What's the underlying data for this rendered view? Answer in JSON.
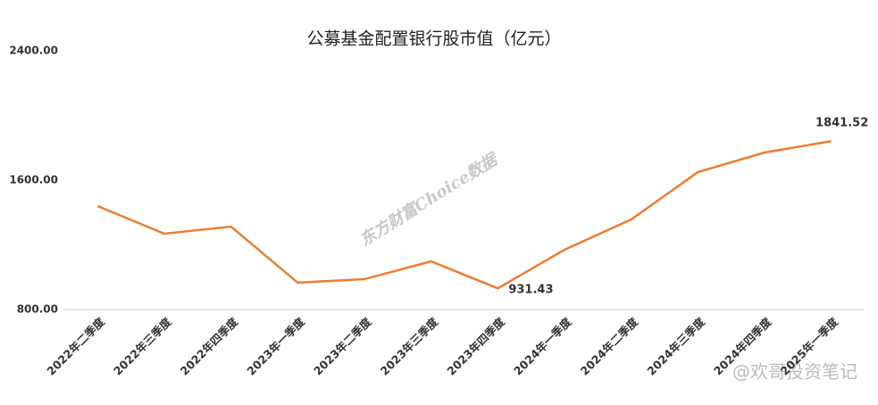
{
  "chart_data": {
    "type": "line",
    "title": "公募基金配置银行股市值（亿元）",
    "categories": [
      "2022年二季度",
      "2022年三季度",
      "2022年四季度",
      "2023年一季度",
      "2023年二季度",
      "2023年三季度",
      "2023年四季度",
      "2024年一季度",
      "2024年二季度",
      "2024年三季度",
      "2024年四季度",
      "2025年一季度"
    ],
    "series": [
      {
        "name": "公募基金配置银行股市值",
        "color": "#ed7d31",
        "values": [
          1440,
          1269,
          1313,
          966,
          988,
          1098,
          931.43,
          1170,
          1357,
          1650,
          1771,
          1841.52
        ],
        "value_labels": [
          null,
          null,
          null,
          null,
          null,
          null,
          "931.43",
          null,
          null,
          null,
          null,
          "1841.52"
        ]
      }
    ],
    "ylim": [
      800,
      2400
    ],
    "yticks": [
      {
        "value": 800,
        "label": "800.00"
      },
      {
        "value": 1600,
        "label": "1600.00"
      },
      {
        "value": 2400,
        "label": "2400.00"
      }
    ],
    "grid": false,
    "watermarks": [
      "东方财富Choice数据",
      "@欢哥投资笔记"
    ]
  }
}
